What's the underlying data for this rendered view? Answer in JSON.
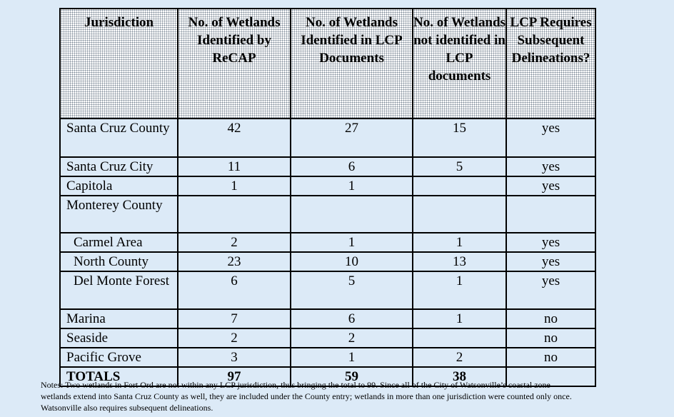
{
  "headers": [
    "Jurisdiction",
    "No. of Wetlands Identified by ReCAP",
    "No. of Wetlands Identified in LCP Documents",
    "No. of Wetlands not identified in LCP documents",
    "LCP Requires Subsequent Delineations?"
  ],
  "rows": [
    {
      "jurisdiction": "Santa Cruz County",
      "recap": "42",
      "lcp": "27",
      "not_lcp": "15",
      "delineation": "yes"
    },
    {
      "jurisdiction": "Santa Cruz City",
      "recap": "11",
      "lcp": "6",
      "not_lcp": "5",
      "delineation": "yes"
    },
    {
      "jurisdiction": "Capitola",
      "recap": "1",
      "lcp": "1",
      "not_lcp": "",
      "delineation": "yes"
    },
    {
      "jurisdiction": "Monterey County",
      "recap": "",
      "lcp": "",
      "not_lcp": "",
      "delineation": ""
    },
    {
      "jurisdiction": "Carmel Area",
      "recap": "2",
      "lcp": "1",
      "not_lcp": "1",
      "delineation": "yes"
    },
    {
      "jurisdiction": "North County",
      "recap": "23",
      "lcp": "10",
      "not_lcp": "13",
      "delineation": "yes"
    },
    {
      "jurisdiction": "Del Monte Forest",
      "recap": "6",
      "lcp": "5",
      "not_lcp": "1",
      "delineation": "yes"
    },
    {
      "jurisdiction": "Marina",
      "recap": "7",
      "lcp": "6",
      "not_lcp": "1",
      "delineation": "no"
    },
    {
      "jurisdiction": "Seaside",
      "recap": "2",
      "lcp": "2",
      "not_lcp": "",
      "delineation": "no"
    },
    {
      "jurisdiction": "Pacific Grove",
      "recap": "3",
      "lcp": "1",
      "not_lcp": "2",
      "delineation": "no"
    }
  ],
  "totals": {
    "label": "TOTALS",
    "recap": "97",
    "lcp": "59",
    "not_lcp": "38",
    "delineation": ""
  },
  "notes": [
    "Notes:  Two wetlands in Fort Ord are not within any LCP jurisdiction, thus bringing the total to 99.  Since all of the City of  Watsonville’s coastal zone",
    "wetlands extend into Santa Cruz County as well, they are included under the County entry; wetlands in more than one jurisdiction were counted only once.",
    "Watsonville also requires subsequent delineations."
  ],
  "colors": {
    "background": "#dceaf7",
    "header_pattern": "#7d8a97",
    "border": "#000000"
  }
}
